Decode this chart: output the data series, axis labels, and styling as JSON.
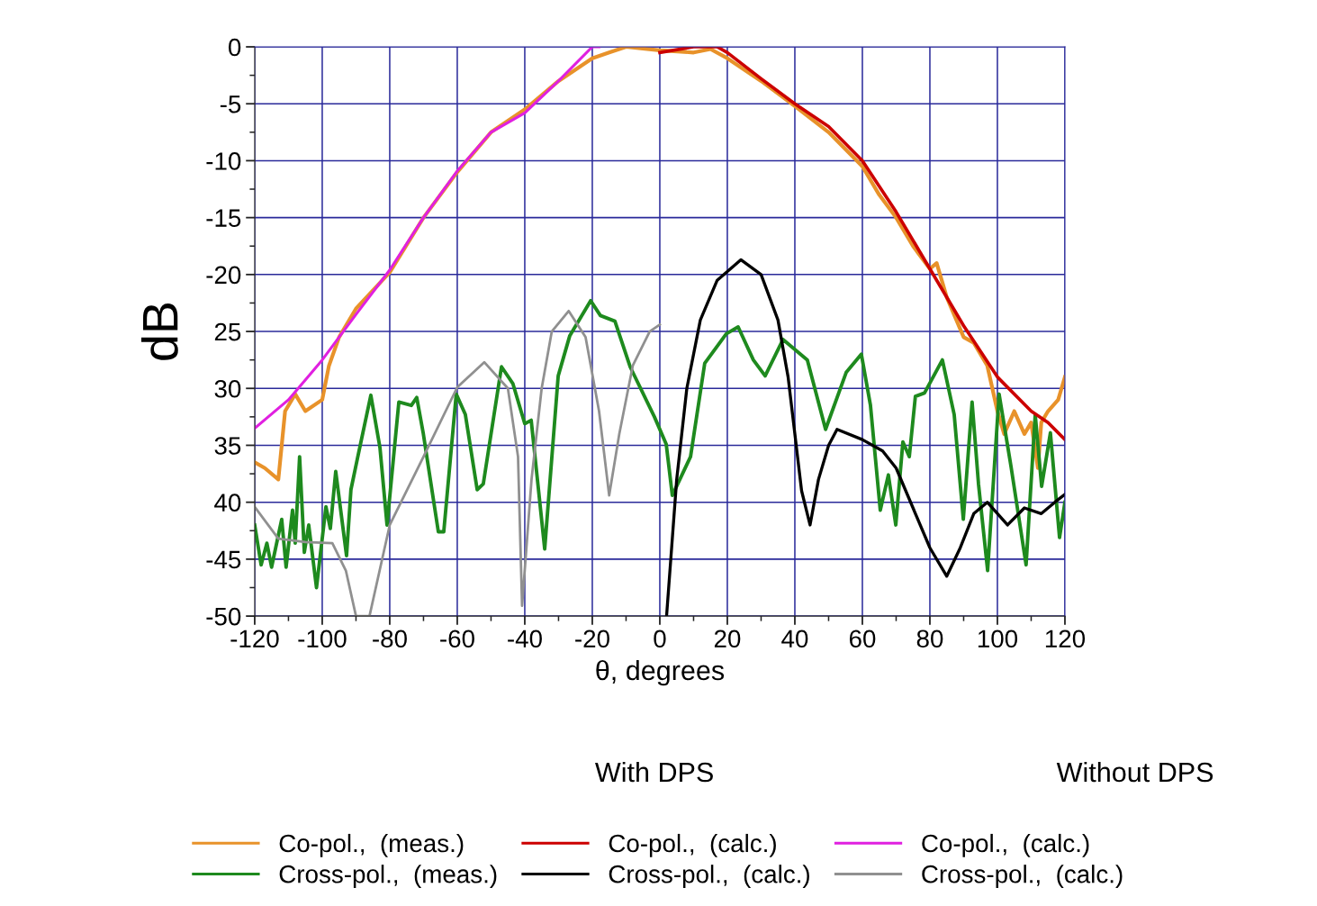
{
  "chart_data": {
    "type": "line",
    "xlabel": "θ, degrees",
    "ylabel": "dB",
    "xlim": [
      -120,
      120
    ],
    "xticks": [
      -120,
      -100,
      -80,
      -60,
      -40,
      -20,
      0,
      20,
      40,
      60,
      80,
      100,
      120
    ],
    "ylim": [
      -50,
      0
    ],
    "yticks": [
      0,
      -5,
      -10,
      -15,
      -20,
      {
        "value": -25,
        "label": "25"
      },
      {
        "value": -30,
        "label": "30"
      },
      {
        "value": -35,
        "label": "35"
      },
      {
        "value": -40,
        "label": "40"
      },
      -45,
      -50
    ],
    "grid": true,
    "legend": "bottom",
    "marker": "none",
    "line_style": "solid",
    "annotations": [
      "With DPS",
      "Without DPS"
    ],
    "series": [
      {
        "name": "Co-pol.,  (meas.)",
        "color": "#e8922a",
        "x": [
          -120,
          -117,
          -113,
          -111,
          -108,
          -105,
          -100,
          -98,
          -95,
          -90,
          -80,
          -70,
          -60,
          -50,
          -40,
          -30,
          -20,
          -15,
          -10,
          0,
          10,
          15,
          20,
          30,
          40,
          50,
          60,
          65,
          70,
          75,
          80,
          82,
          85,
          90,
          93,
          97,
          100,
          102,
          105,
          108,
          110,
          112,
          113,
          115,
          118,
          120
        ],
        "values": [
          -36.5,
          -37,
          -38,
          -32,
          -30.5,
          -32,
          -31,
          -28,
          -25.5,
          -23,
          -19.8,
          -15,
          -11,
          -7.5,
          -5.5,
          -3,
          -1,
          -0.5,
          0,
          -0.3,
          -0.5,
          -0.2,
          -1,
          -3,
          -5.2,
          -7.5,
          -10.5,
          -13,
          -15,
          -17.5,
          -19.5,
          -19,
          -22,
          -25.5,
          -26,
          -28,
          -32,
          -34,
          -32,
          -34,
          -33,
          -37,
          -33,
          -32,
          -31,
          -29
        ]
      },
      {
        "name": "Cross-pol.,  (meas.)",
        "color": "#1e8a1e",
        "x": [
          -120,
          -118.1,
          -116.4,
          -115,
          -112,
          -110.7,
          -108.8,
          -108,
          -106.7,
          -105.3,
          -104,
          -101.7,
          -98.9,
          -97.6,
          -96,
          -92.8,
          -91.5,
          -89.6,
          -85.6,
          -82.9,
          -80.8,
          -77.3,
          -73.6,
          -72,
          -70.1,
          -65.6,
          -64,
          -60.3,
          -57.6,
          -54.1,
          -52.3,
          -46.9,
          -43.5,
          -40,
          -38.1,
          -34.1,
          -30.1,
          -26.7,
          -20.5,
          -17.6,
          -13.3,
          -8.8,
          -1.6,
          1.9,
          3.7,
          9.1,
          13.3,
          19.7,
          23.2,
          27.7,
          31.2,
          36.5,
          43.7,
          49.1,
          55.2,
          59.7,
          62.4,
          65.3,
          67.7,
          69.9,
          72,
          73.9,
          75.7,
          78.4,
          83.7,
          87.2,
          89.9,
          92.5,
          94.4,
          97.1,
          100.5,
          104,
          108.5,
          111.2,
          113.1,
          115.7,
          118.4,
          120
        ],
        "values": [
          -42,
          -45.5,
          -43.6,
          -45.7,
          -41.5,
          -45.7,
          -40.7,
          -43.6,
          -36,
          -44.4,
          -42,
          -47.5,
          -40.4,
          -42.3,
          -37.3,
          -44.7,
          -38.9,
          -36.2,
          -30.6,
          -35.2,
          -42,
          -31.2,
          -31.5,
          -30.8,
          -33.9,
          -42.6,
          -42.6,
          -30.5,
          -32.3,
          -38.9,
          -38.4,
          -28.1,
          -29.6,
          -33.1,
          -32.8,
          -44.1,
          -28.9,
          -25.4,
          -22.3,
          -23.6,
          -24.1,
          -28.1,
          -32.5,
          -34.9,
          -39.4,
          -36,
          -27.8,
          -25.2,
          -24.6,
          -27.5,
          -28.9,
          -25.7,
          -27.5,
          -33.6,
          -28.6,
          -27,
          -31.5,
          -40.7,
          -37.6,
          -42,
          -34.7,
          -36,
          -30.7,
          -30.4,
          -27.5,
          -32.3,
          -41.5,
          -31.2,
          -38.4,
          -46,
          -30.5,
          -36.8,
          -45.5,
          -32.3,
          -38.6,
          -33.9,
          -43.1,
          -40
        ]
      },
      {
        "name": "Co-pol.,  (calc.)",
        "color": "#cc0000",
        "x": [
          0,
          10,
          17,
          20,
          30,
          40,
          50,
          60,
          70,
          80,
          90,
          100,
          110,
          115,
          120
        ],
        "values": [
          -0.5,
          0,
          0,
          -0.5,
          -2.8,
          -5,
          -7,
          -10,
          -14.5,
          -19.5,
          -24.5,
          -29,
          -32,
          -33,
          -34.5
        ]
      },
      {
        "name": "Cross-pol.,  (calc.)",
        "color": "#000000",
        "x": [
          2,
          5,
          8,
          12,
          17,
          24,
          30,
          35,
          38,
          40,
          42,
          44.5,
          47,
          50,
          52.5,
          60,
          66,
          70,
          75,
          80,
          85,
          89,
          93,
          97,
          103,
          108,
          113,
          117,
          120
        ],
        "values": [
          -50,
          -38,
          -30,
          -24,
          -20.5,
          -18.7,
          -20,
          -24,
          -29,
          -34,
          -39,
          -42,
          -38,
          -35,
          -33.6,
          -34.5,
          -35.5,
          -37,
          -40.5,
          -44,
          -46.5,
          -44,
          -41,
          -40,
          -42,
          -40.5,
          -41,
          -40,
          -39.3
        ]
      },
      {
        "name": "Co-pol.,  (calc.)",
        "color": "#e020e0",
        "x": [
          -120,
          -110,
          -100,
          -90,
          -80,
          -70,
          -60,
          -50,
          -40,
          -30,
          -20,
          -18
        ],
        "values": [
          -33.5,
          -31,
          -27.5,
          -23.5,
          -19.6,
          -15,
          -10.9,
          -7.5,
          -5.8,
          -3,
          0,
          0
        ]
      },
      {
        "name": "Cross-pol.,  (calc.)",
        "color": "#909090",
        "x": [
          -120,
          -113,
          -105,
          -97,
          -93,
          -90,
          -86,
          -80,
          -70,
          -60,
          -52,
          -45,
          -42,
          -40.8,
          -38,
          -35,
          -32,
          -27,
          -22,
          -18,
          -15,
          -12,
          -8,
          -3,
          0
        ],
        "values": [
          -40.4,
          -43.2,
          -43.5,
          -43.6,
          -46,
          -50,
          -50,
          -42,
          -36,
          -29.9,
          -27.7,
          -30,
          -36,
          -49.1,
          -38,
          -30,
          -25,
          -23.2,
          -25.5,
          -32,
          -39.4,
          -34,
          -28,
          -25,
          -24.4
        ]
      }
    ]
  }
}
